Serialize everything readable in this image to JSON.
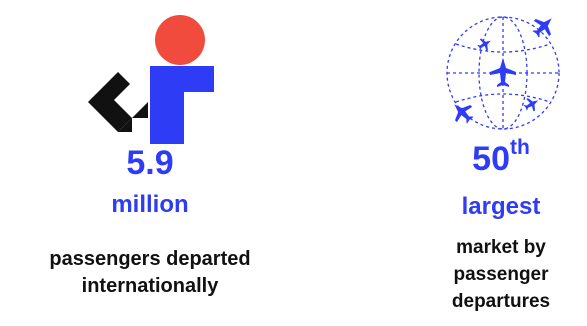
{
  "stats": [
    {
      "icon": "abstract-geometric-logo-icon",
      "value": "5.9",
      "unit": "million",
      "description_lines": [
        "passengers departed",
        "internationally"
      ]
    },
    {
      "icon": "globe-with-airplanes-icon",
      "value": "50",
      "value_suffix": "th",
      "unit": "largest",
      "description_lines": [
        "market by",
        "passenger",
        "departures"
      ]
    }
  ],
  "colors": {
    "accent_blue": "#2f3cf5",
    "accent_red": "#f04b3c",
    "black": "#111111"
  }
}
